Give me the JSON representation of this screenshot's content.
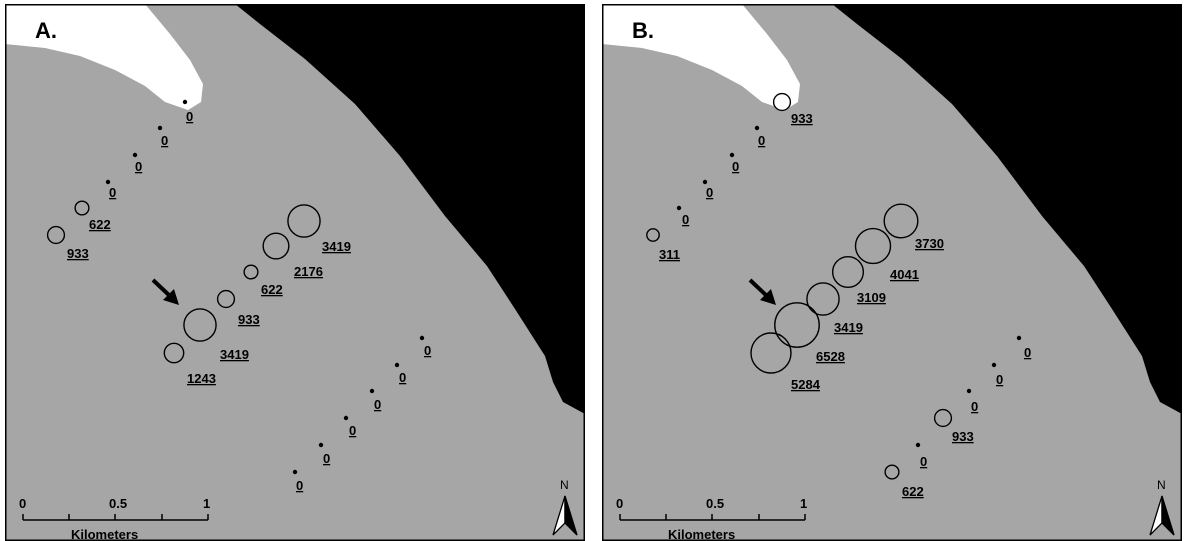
{
  "panels": [
    {
      "label": "A.",
      "scale": {
        "ticks": [
          "0",
          "0.5",
          "1"
        ],
        "unit": "Kilometers"
      },
      "north": "N",
      "stations": [
        {
          "value": "0",
          "count": 0
        },
        {
          "value": "0",
          "count": 0
        },
        {
          "value": "0",
          "count": 0
        },
        {
          "value": "0",
          "count": 0
        },
        {
          "value": "622",
          "count": 622
        },
        {
          "value": "933",
          "count": 933
        },
        {
          "value": "3419",
          "count": 3419
        },
        {
          "value": "2176",
          "count": 2176
        },
        {
          "value": "622",
          "count": 622
        },
        {
          "value": "933",
          "count": 933
        },
        {
          "value": "3419",
          "count": 3419
        },
        {
          "value": "1243",
          "count": 1243
        },
        {
          "value": "0",
          "count": 0
        },
        {
          "value": "0",
          "count": 0
        },
        {
          "value": "0",
          "count": 0
        },
        {
          "value": "0",
          "count": 0
        },
        {
          "value": "0",
          "count": 0
        },
        {
          "value": "0",
          "count": 0
        }
      ]
    },
    {
      "label": "B.",
      "scale": {
        "ticks": [
          "0",
          "0.5",
          "1"
        ],
        "unit": "Kilometers"
      },
      "north": "N",
      "stations": [
        {
          "value": "933",
          "count": 933
        },
        {
          "value": "0",
          "count": 0
        },
        {
          "value": "0",
          "count": 0
        },
        {
          "value": "0",
          "count": 0
        },
        {
          "value": "0",
          "count": 0
        },
        {
          "value": "311",
          "count": 311
        },
        {
          "value": "3730",
          "count": 3730
        },
        {
          "value": "4041",
          "count": 4041
        },
        {
          "value": "3109",
          "count": 3109
        },
        {
          "value": "3419",
          "count": 3419
        },
        {
          "value": "6528",
          "count": 6528
        },
        {
          "value": "5284",
          "count": 5284
        },
        {
          "value": "0",
          "count": 0
        },
        {
          "value": "0",
          "count": 0
        },
        {
          "value": "0",
          "count": 0
        },
        {
          "value": "933",
          "count": 933
        },
        {
          "value": "0",
          "count": 0
        },
        {
          "value": "622",
          "count": 622
        }
      ]
    }
  ],
  "colors": {
    "sea": "#a6a6a6",
    "land_dark": "#000000",
    "land_light": "#ffffff",
    "frame": "#000000"
  }
}
